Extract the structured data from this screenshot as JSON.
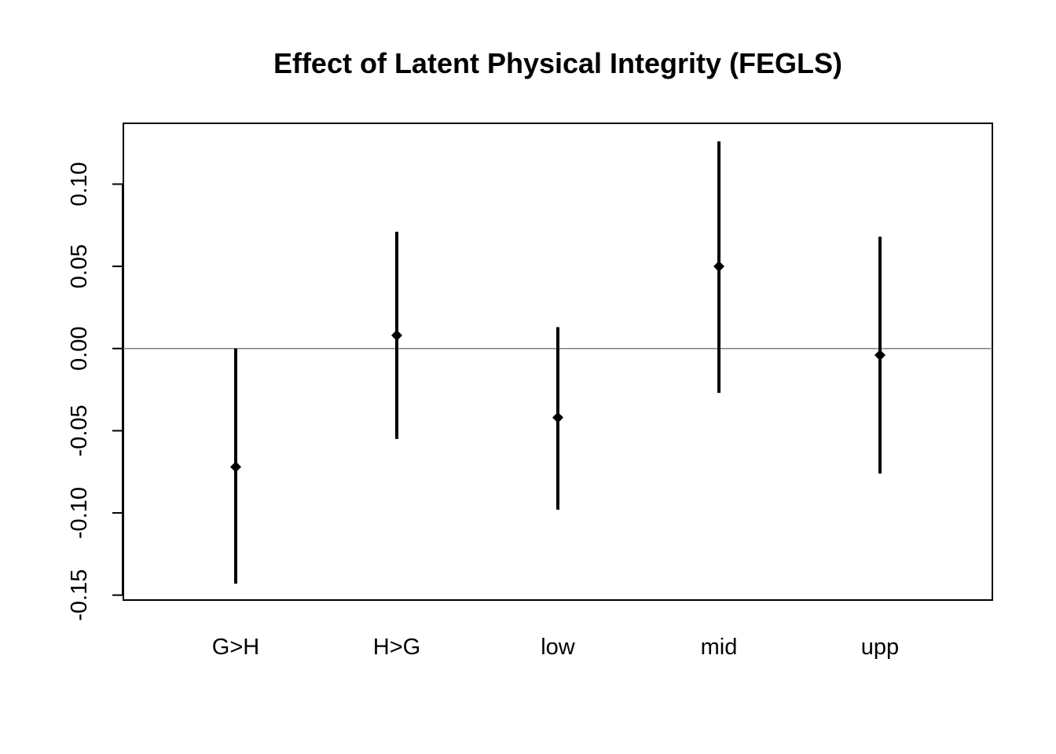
{
  "chart_data": {
    "type": "scatter",
    "title": "Effect of Latent Physical Integrity (FEGLS)",
    "xlabel": "",
    "ylabel": "",
    "categories": [
      "G>H",
      "H>G",
      "low",
      "mid",
      "upp"
    ],
    "series": [
      {
        "estimates": [
          -0.072,
          0.008,
          -0.042,
          0.05,
          -0.004
        ],
        "lower": [
          -0.143,
          -0.055,
          -0.098,
          -0.027,
          -0.076
        ],
        "upper": [
          0.0,
          0.071,
          0.013,
          0.126,
          0.068
        ]
      }
    ],
    "yticks": [
      -0.15,
      -0.1,
      -0.05,
      0.0,
      0.05,
      0.1
    ],
    "ytick_labels": [
      "-0.15",
      "-0.10",
      "-0.05",
      "0.00",
      "0.05",
      "0.10"
    ],
    "ylim": [
      -0.153,
      0.137
    ],
    "reference_line": 0,
    "grid": false,
    "colors": {
      "marks": "#000000",
      "reference_line": "#808080"
    }
  }
}
